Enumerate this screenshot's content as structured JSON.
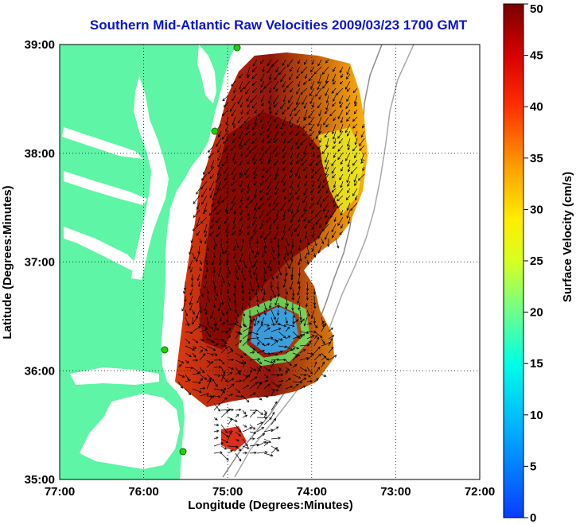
{
  "title": "Southern Mid-Atlantic Raw Velocities 2009/03/23 1700 GMT",
  "xlabel": "Longitude (Degrees:Minutes)",
  "ylabel": "Latitude (Degrees:Minutes)",
  "colorbar_label": "Surface Velocity (cm/s)",
  "x_ticks": [
    "77:00",
    "76:00",
    "75:00",
    "74:00",
    "73:00",
    "72:00"
  ],
  "y_ticks": [
    "35:00",
    "36:00",
    "37:00",
    "38:00",
    "39:00"
  ],
  "cbar_ticks": [
    "0",
    "5",
    "10",
    "15",
    "20",
    "25",
    "30",
    "35",
    "40",
    "45",
    "50"
  ],
  "colors": {
    "land": "#5ef5a6",
    "title": "#0a14d2",
    "grid": "#000000"
  },
  "chart_data": {
    "type": "heatmap",
    "title": "Southern Mid-Atlantic Raw Velocities 2009/03/23 1700 GMT",
    "xlabel": "Longitude (Degrees:Minutes)",
    "ylabel": "Latitude (Degrees:Minutes)",
    "xlim": [
      -77.0,
      -72.0
    ],
    "ylim": [
      35.0,
      39.0
    ],
    "color_range": [
      0,
      50
    ],
    "color_units": "cm/s",
    "colormap": "jet",
    "grid": true
  }
}
